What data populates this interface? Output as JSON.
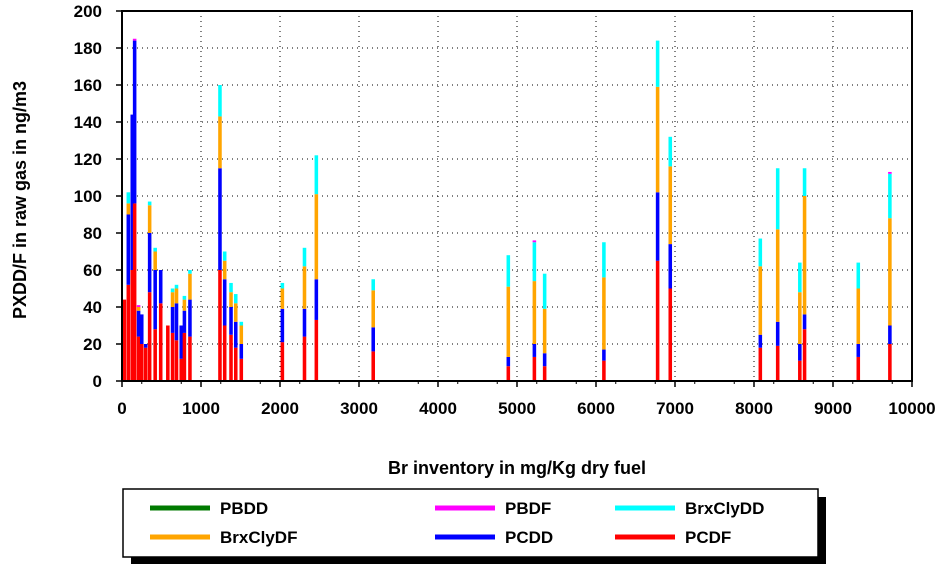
{
  "chart_data": {
    "type": "bar",
    "subtype": "stacked",
    "xlabel": "Br inventory in mg/Kg dry fuel",
    "ylabel": "PXDD/F in raw gas in ng/m3",
    "xlim": [
      0,
      10000
    ],
    "ylim": [
      0,
      200
    ],
    "x_ticks": [
      0,
      1000,
      2000,
      3000,
      4000,
      5000,
      6000,
      7000,
      8000,
      9000,
      10000
    ],
    "y_ticks": [
      0,
      20,
      40,
      60,
      80,
      100,
      120,
      140,
      160,
      180,
      200
    ],
    "grid": "dotted",
    "legend_position": "bottom",
    "series_names": [
      "PBDD",
      "PBDF",
      "BrxClyDD",
      "BrxClyDF",
      "PCDD",
      "PCDF"
    ],
    "colors": {
      "PBDD": "#007a00",
      "PBDF": "#ff00ff",
      "BrxClyDD": "#00ffff",
      "BrxClyDF": "#ffa500",
      "PCDD": "#0000ff",
      "PCDF": "#ff0000"
    },
    "stack_order": [
      "PCDF",
      "PCDD",
      "BrxClyDF",
      "BrxClyDD",
      "PBDF",
      "PBDD"
    ],
    "bar_width_x": 45,
    "points": [
      {
        "x": 30,
        "PCDF": 44,
        "PCDD": 0,
        "BrxClyDF": 0,
        "BrxClyDD": 0,
        "PBDF": 0,
        "PBDD": 0
      },
      {
        "x": 80,
        "PCDF": 52,
        "PCDD": 38,
        "BrxClyDF": 6,
        "BrxClyDD": 6,
        "PBDF": 0,
        "PBDD": 0
      },
      {
        "x": 130,
        "PCDF": 60,
        "PCDD": 84,
        "BrxClyDF": 0,
        "BrxClyDD": 0,
        "PBDF": 0,
        "PBDD": 0
      },
      {
        "x": 160,
        "PCDF": 96,
        "PCDD": 88,
        "BrxClyDF": 0,
        "BrxClyDD": 0,
        "PBDF": 1,
        "PBDD": 0
      },
      {
        "x": 210,
        "PCDF": 24,
        "PCDD": 14,
        "BrxClyDF": 2,
        "BrxClyDD": 0,
        "PBDF": 1,
        "PBDD": 0
      },
      {
        "x": 250,
        "PCDF": 20,
        "PCDD": 16,
        "BrxClyDF": 0,
        "BrxClyDD": 0,
        "PBDF": 0,
        "PBDD": 0
      },
      {
        "x": 300,
        "PCDF": 18,
        "PCDD": 2,
        "BrxClyDF": 0,
        "BrxClyDD": 0,
        "PBDF": 0,
        "PBDD": 0
      },
      {
        "x": 350,
        "PCDF": 48,
        "PCDD": 32,
        "BrxClyDF": 15,
        "BrxClyDD": 2,
        "PBDF": 0,
        "PBDD": 0
      },
      {
        "x": 420,
        "PCDF": 28,
        "PCDD": 32,
        "BrxClyDF": 10,
        "BrxClyDD": 2,
        "PBDF": 0,
        "PBDD": 0
      },
      {
        "x": 490,
        "PCDF": 42,
        "PCDD": 18,
        "BrxClyDF": 0,
        "BrxClyDD": 0,
        "PBDF": 0,
        "PBDD": 0
      },
      {
        "x": 580,
        "PCDF": 30,
        "PCDD": 0,
        "BrxClyDF": 0,
        "BrxClyDD": 0,
        "PBDF": 0,
        "PBDD": 0
      },
      {
        "x": 640,
        "PCDF": 26,
        "PCDD": 14,
        "BrxClyDF": 8,
        "BrxClyDD": 2,
        "PBDF": 0,
        "PBDD": 0
      },
      {
        "x": 690,
        "PCDF": 22,
        "PCDD": 20,
        "BrxClyDF": 8,
        "BrxClyDD": 2,
        "PBDF": 0,
        "PBDD": 0
      },
      {
        "x": 750,
        "PCDF": 12,
        "PCDD": 18,
        "BrxClyDF": 0,
        "BrxClyDD": 0,
        "PBDF": 0,
        "PBDD": 0
      },
      {
        "x": 790,
        "PCDF": 26,
        "PCDD": 12,
        "BrxClyDF": 6,
        "BrxClyDD": 2,
        "PBDF": 0,
        "PBDD": 0
      },
      {
        "x": 860,
        "PCDF": 24,
        "PCDD": 20,
        "BrxClyDF": 14,
        "BrxClyDD": 2,
        "PBDF": 0,
        "PBDD": 0
      },
      {
        "x": 1240,
        "PCDF": 60,
        "PCDD": 55,
        "BrxClyDF": 28,
        "BrxClyDD": 17,
        "PBDF": 0,
        "PBDD": 0
      },
      {
        "x": 1300,
        "PCDF": 30,
        "PCDD": 25,
        "BrxClyDF": 10,
        "BrxClyDD": 5,
        "PBDF": 0,
        "PBDD": 0
      },
      {
        "x": 1380,
        "PCDF": 25,
        "PCDD": 15,
        "BrxClyDF": 8,
        "BrxClyDD": 5,
        "PBDF": 0,
        "PBDD": 0
      },
      {
        "x": 1440,
        "PCDF": 18,
        "PCDD": 14,
        "BrxClyDF": 10,
        "BrxClyDD": 5,
        "PBDF": 0,
        "PBDD": 0
      },
      {
        "x": 1510,
        "PCDF": 12,
        "PCDD": 8,
        "BrxClyDF": 10,
        "BrxClyDD": 2,
        "PBDF": 0,
        "PBDD": 0
      },
      {
        "x": 2030,
        "PCDF": 21,
        "PCDD": 18,
        "BrxClyDF": 11,
        "BrxClyDD": 3,
        "PBDF": 0,
        "PBDD": 0
      },
      {
        "x": 2310,
        "PCDF": 24,
        "PCDD": 15,
        "BrxClyDF": 23,
        "BrxClyDD": 10,
        "PBDF": 0,
        "PBDD": 0
      },
      {
        "x": 2460,
        "PCDF": 33,
        "PCDD": 22,
        "BrxClyDF": 46,
        "BrxClyDD": 21,
        "PBDF": 0,
        "PBDD": 0
      },
      {
        "x": 3180,
        "PCDF": 16,
        "PCDD": 13,
        "BrxClyDF": 20,
        "BrxClyDD": 6,
        "PBDF": 0,
        "PBDD": 0
      },
      {
        "x": 4890,
        "PCDF": 8,
        "PCDD": 5,
        "BrxClyDF": 38,
        "BrxClyDD": 17,
        "PBDF": 0,
        "PBDD": 0
      },
      {
        "x": 5220,
        "PCDF": 13,
        "PCDD": 7,
        "BrxClyDF": 34,
        "BrxClyDD": 21,
        "PBDF": 1,
        "PBDD": 0
      },
      {
        "x": 5350,
        "PCDF": 8,
        "PCDD": 7,
        "BrxClyDF": 24,
        "BrxClyDD": 19,
        "PBDF": 0,
        "PBDD": 0
      },
      {
        "x": 6100,
        "PCDF": 11,
        "PCDD": 6,
        "BrxClyDF": 39,
        "BrxClyDD": 19,
        "PBDF": 0,
        "PBDD": 0
      },
      {
        "x": 6780,
        "PCDF": 65,
        "PCDD": 37,
        "BrxClyDF": 57,
        "BrxClyDD": 25,
        "PBDF": 0,
        "PBDD": 0
      },
      {
        "x": 6940,
        "PCDF": 50,
        "PCDD": 24,
        "BrxClyDF": 42,
        "BrxClyDD": 16,
        "PBDF": 0,
        "PBDD": 0
      },
      {
        "x": 8080,
        "PCDF": 18,
        "PCDD": 7,
        "BrxClyDF": 37,
        "BrxClyDD": 15,
        "PBDF": 0,
        "PBDD": 0
      },
      {
        "x": 8300,
        "PCDF": 19,
        "PCDD": 13,
        "BrxClyDF": 50,
        "BrxClyDD": 33,
        "PBDF": 0,
        "PBDD": 0
      },
      {
        "x": 8580,
        "PCDF": 11,
        "PCDD": 9,
        "BrxClyDF": 28,
        "BrxClyDD": 16,
        "PBDF": 0,
        "PBDD": 0
      },
      {
        "x": 8640,
        "PCDF": 28,
        "PCDD": 8,
        "BrxClyDF": 64,
        "BrxClyDD": 15,
        "PBDF": 0,
        "PBDD": 0
      },
      {
        "x": 9320,
        "PCDF": 13,
        "PCDD": 7,
        "BrxClyDF": 30,
        "BrxClyDD": 14,
        "PBDF": 0,
        "PBDD": 0
      },
      {
        "x": 9720,
        "PCDF": 20,
        "PCDD": 10,
        "BrxClyDF": 58,
        "BrxClyDD": 24,
        "PBDF": 1,
        "PBDD": 0
      }
    ]
  }
}
